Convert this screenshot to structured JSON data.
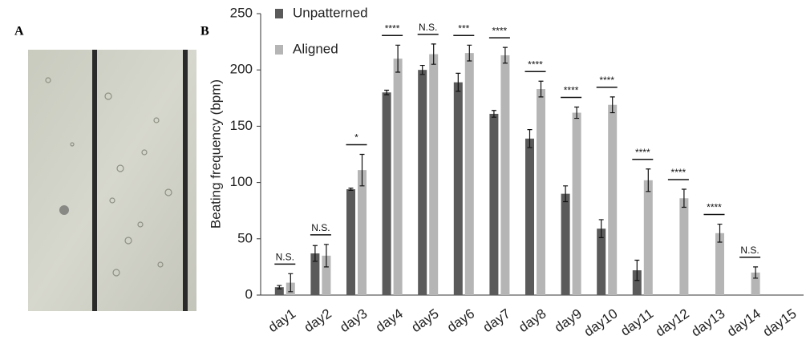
{
  "panel_labels": [
    "A",
    "B"
  ],
  "chart_data": {
    "type": "bar",
    "y_label": "Beating frequency (bpm)",
    "categories": [
      "day1",
      "day2",
      "day3",
      "day4",
      "day5",
      "day6",
      "day7",
      "day8",
      "day9",
      "day10",
      "day11",
      "day12",
      "day13",
      "day14",
      "day15"
    ],
    "series": [
      {
        "name": "Unpatterned",
        "color": "#5a5a5a",
        "values": [
          7,
          37,
          94,
          180,
          200,
          189,
          161,
          139,
          90,
          59,
          22,
          null,
          null,
          null,
          null
        ],
        "errors": [
          1.5,
          7,
          1,
          2,
          4,
          8,
          3,
          8,
          7,
          8,
          9,
          null,
          null,
          null,
          null
        ]
      },
      {
        "name": "Aligned",
        "color": "#b5b5b5",
        "values": [
          11,
          35,
          111,
          210,
          214,
          215,
          213,
          183,
          162,
          169,
          102,
          86,
          55,
          20,
          null
        ],
        "errors": [
          8,
          10,
          14,
          12,
          9,
          7,
          7,
          7,
          5,
          7,
          10,
          8,
          8,
          5,
          null
        ]
      }
    ],
    "annotations": [
      "N.S.",
      "N.S.",
      "*",
      "****",
      "N.S.",
      "***",
      "****",
      "****",
      "****",
      "****",
      "****",
      "****",
      "****",
      "N.S.",
      null
    ],
    "ylim": [
      0,
      250
    ],
    "yticks": [
      0,
      50,
      100,
      150,
      200,
      250
    ],
    "grid": false
  }
}
